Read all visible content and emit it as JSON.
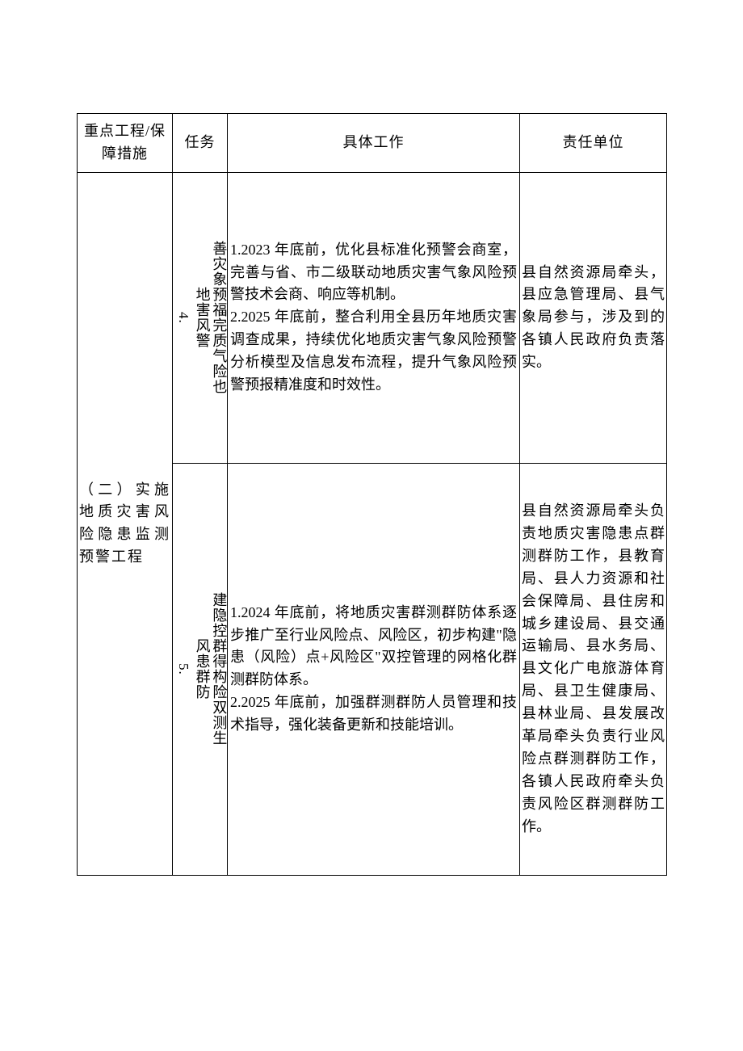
{
  "table": {
    "headers": {
      "project": "重点工程/保障措施",
      "task": "任务",
      "work": "具体工作",
      "unit": "责任单位"
    },
    "project_label": "（二）实施地质灾害风险隐患监测预警工程",
    "rows": [
      {
        "task_num": "4. ",
        "task_title": "地害风警",
        "task_desc": "善灾象预福完质气险也",
        "work": "1.2023 年底前，优化县标准化预警会商室，完善与省、市二级联动地质灾害气象风险预警技术会商、响应等机制。\n2.2025 年底前，整合利用全县历年地质灾害调查成果，持续优化地质灾害气象风险预警分析模型及信息发布流程，提升气象风险预警预报精准度和时效性。",
        "unit": "县自然资源局牵头，县应急管理局、县气象局参与，涉及到的各镇人民政府负责落实。"
      },
      {
        "task_num": "5. ",
        "task_title": "风患群防",
        "task_desc": "建隐控群得构险双测生",
        "work": "1.2024 年底前，将地质灾害群测群防体系逐步推广至行业风险点、风险区，初步构建\"隐患（风险）点+风险区\"双控管理的网格化群测群防体系。\n2.2025 年底前，加强群测群防人员管理和技术指导，强化装备更新和技能培训。",
        "unit": "县自然资源局牵头负责地质灾害隐患点群测群防工作，县教育局、县人力资源和社会保障局、县住房和城乡建设局、县交通运输局、县水务局、县文化广电旅游体育局、县卫生健康局、县林业局、县发展改革局牵头负责行业风险点群测群防工作，各镇人民政府牵头负责风险区群测群防工作。"
      }
    ]
  }
}
